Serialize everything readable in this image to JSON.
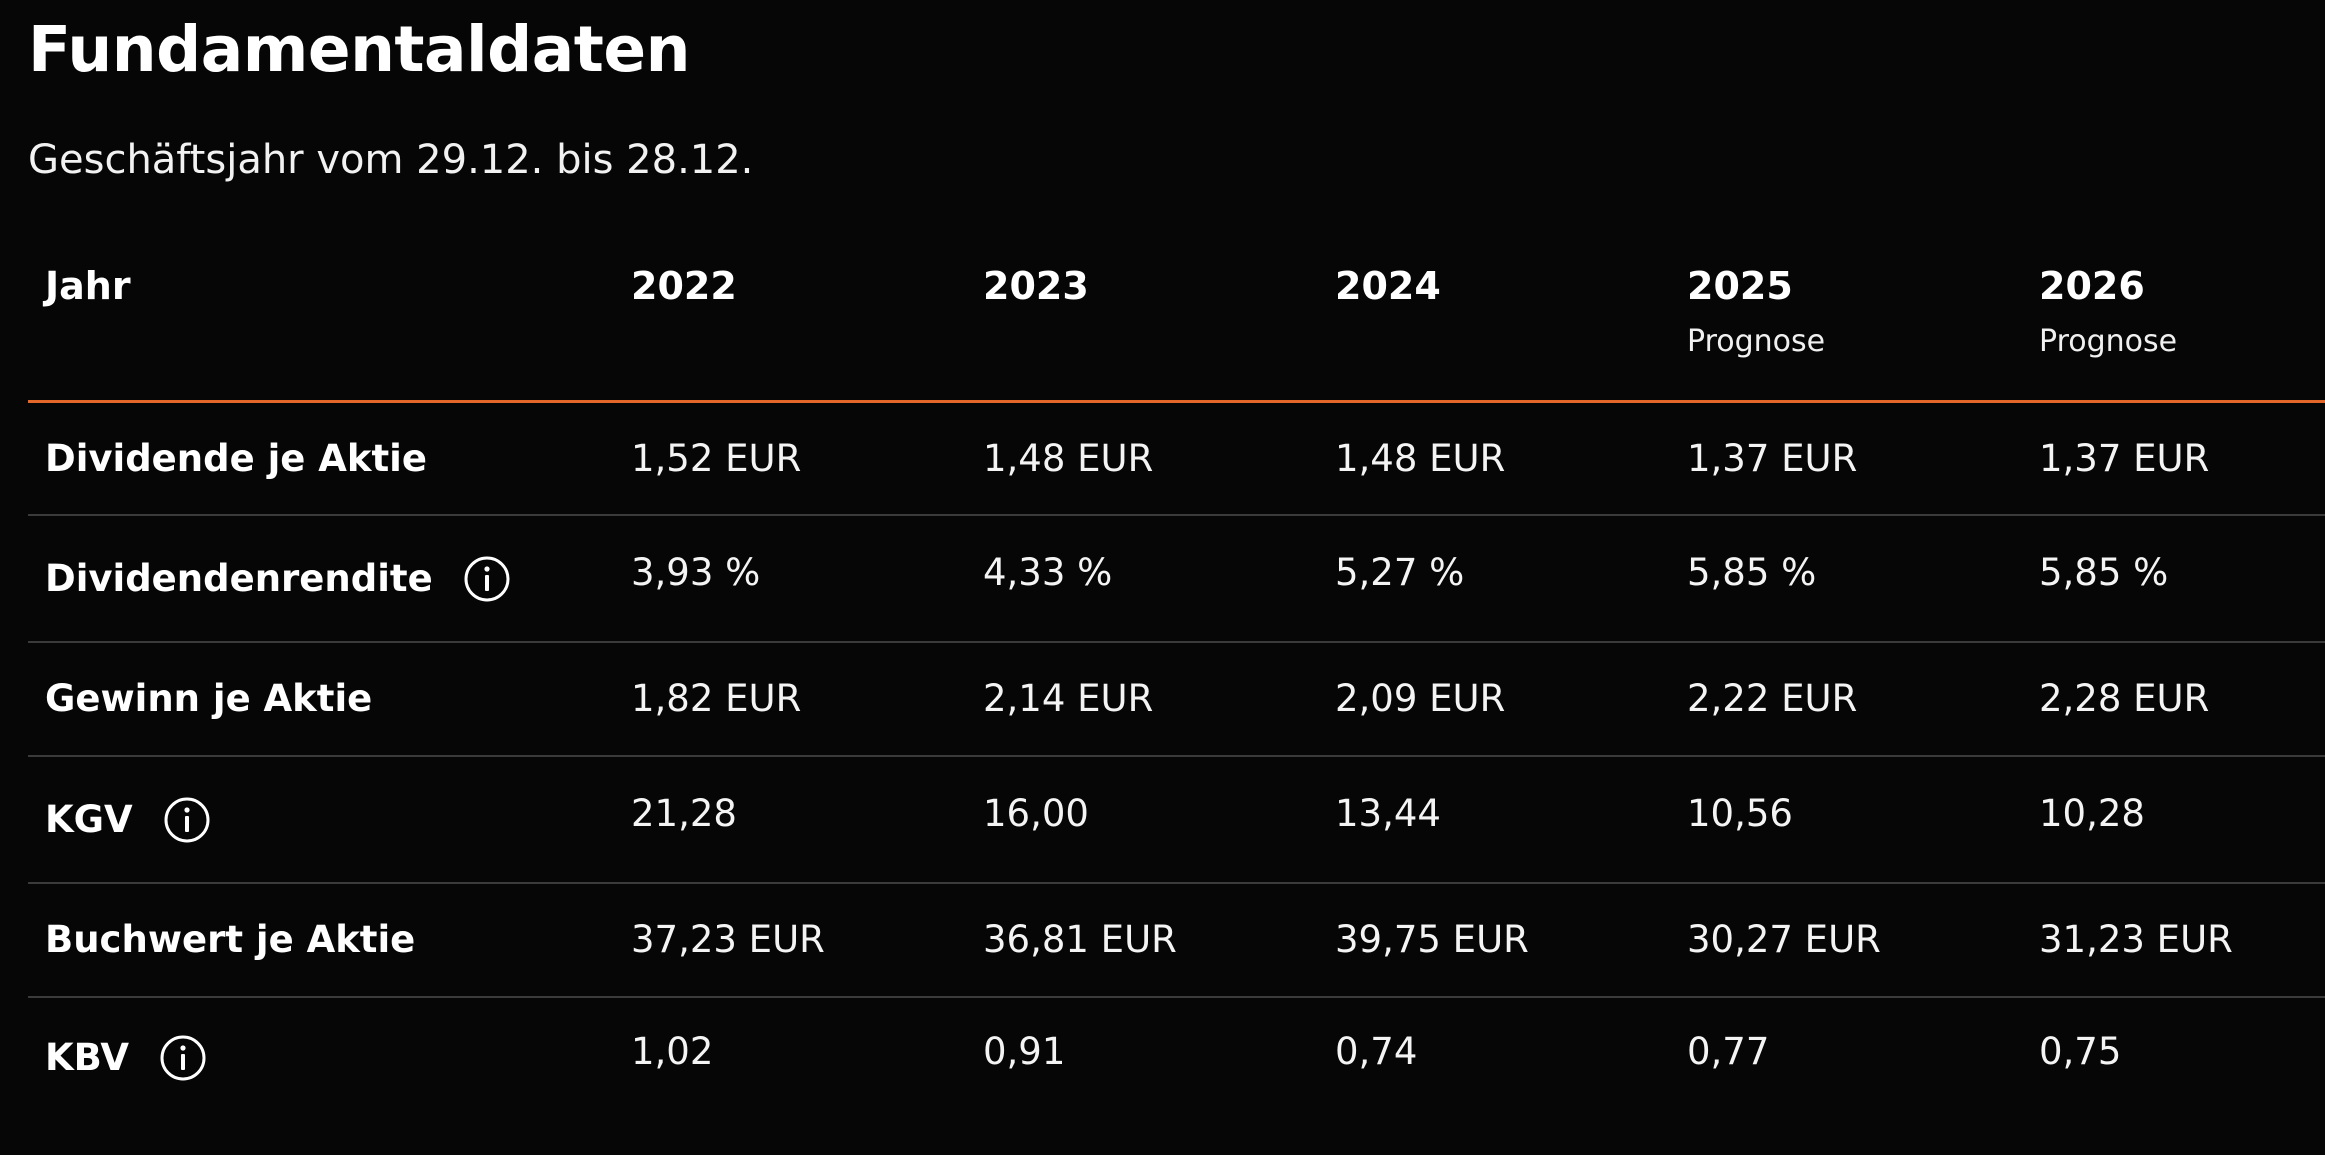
{
  "page": {
    "title": "Fundamentaldaten",
    "subtitle": "Geschäftsjahr vom 29.12. bis 28.12."
  },
  "table": {
    "header": {
      "label": "Jahr",
      "years": [
        {
          "year": "2022",
          "note": ""
        },
        {
          "year": "2023",
          "note": ""
        },
        {
          "year": "2024",
          "note": ""
        },
        {
          "year": "2025",
          "note": "Prognose"
        },
        {
          "year": "2026",
          "note": "Prognose"
        }
      ]
    },
    "rows": [
      {
        "label": "Dividende je Aktie",
        "info_icon": false,
        "values": [
          "1,52 EUR",
          "1,48 EUR",
          "1,48 EUR",
          "1,37 EUR",
          "1,37 EUR"
        ]
      },
      {
        "label": "Dividendenrendite",
        "info_icon": true,
        "values": [
          "3,93 %",
          "4,33 %",
          "5,27 %",
          "5,85 %",
          "5,85 %"
        ]
      },
      {
        "label": "Gewinn je Aktie",
        "info_icon": false,
        "values": [
          "1,82 EUR",
          "2,14 EUR",
          "2,09 EUR",
          "2,22 EUR",
          "2,28 EUR"
        ]
      },
      {
        "label": "KGV",
        "info_icon": true,
        "values": [
          "21,28",
          "16,00",
          "13,44",
          "10,56",
          "10,28"
        ]
      },
      {
        "label": "Buchwert je Aktie",
        "info_icon": false,
        "values": [
          "37,23 EUR",
          "36,81 EUR",
          "39,75 EUR",
          "30,27 EUR",
          "31,23 EUR"
        ]
      },
      {
        "label": "KBV",
        "info_icon": true,
        "values": [
          "1,02",
          "0,91",
          "0,74",
          "0,77",
          "0,75"
        ]
      }
    ]
  },
  "colors": {
    "background": "#060606",
    "text": "#ffffff",
    "accent_divider": "#e4672a",
    "row_divider": "#3a3a3a"
  },
  "icons": {
    "info": "info-circle-icon"
  }
}
